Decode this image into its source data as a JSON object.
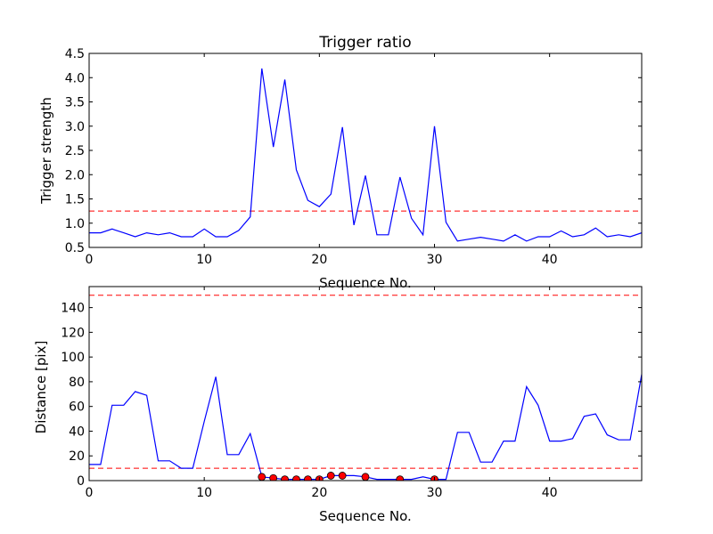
{
  "chart_data": [
    {
      "type": "line",
      "title": "Trigger ratio",
      "xlabel": "Sequence No.",
      "ylabel": "Trigger strength",
      "xlim": [
        0,
        48
      ],
      "ylim": [
        0.5,
        4.5
      ],
      "xticks": [
        0,
        10,
        20,
        30,
        40
      ],
      "yticks": [
        0.5,
        1.0,
        1.5,
        2.0,
        2.5,
        3.0,
        3.5,
        4.0,
        4.5
      ],
      "xtick_labels": [
        "0",
        "10",
        "20",
        "30",
        "40"
      ],
      "ytick_labels": [
        "0.5",
        "1.0",
        "1.5",
        "2.0",
        "2.5",
        "3.0",
        "3.5",
        "4.0",
        "4.5"
      ],
      "grid": false,
      "series": [
        {
          "color": "#0000ff",
          "x": [
            0,
            1,
            2,
            3,
            4,
            5,
            6,
            7,
            8,
            9,
            10,
            11,
            12,
            13,
            14,
            15,
            16,
            17,
            18,
            19,
            20,
            21,
            22,
            23,
            24,
            25,
            26,
            27,
            28,
            29,
            30,
            31,
            32,
            33,
            34,
            35,
            36,
            37,
            38,
            39,
            40,
            41,
            42,
            43,
            44,
            45,
            46,
            47,
            48
          ],
          "y": [
            0.8,
            0.8,
            0.88,
            0.8,
            0.72,
            0.8,
            0.76,
            0.8,
            0.72,
            0.72,
            0.88,
            0.72,
            0.72,
            0.85,
            1.13,
            4.19,
            2.57,
            3.96,
            2.1,
            1.47,
            1.34,
            1.6,
            2.98,
            0.96,
            1.98,
            0.76,
            0.76,
            1.95,
            1.1,
            0.76,
            3.0,
            1.02,
            0.63,
            0.67,
            0.71,
            0.67,
            0.63,
            0.76,
            0.63,
            0.72,
            0.72,
            0.84,
            0.72,
            0.76,
            0.9,
            0.72,
            0.76,
            0.72,
            0.8
          ]
        }
      ],
      "hlines": [
        {
          "y": 1.25,
          "color": "#ff0000",
          "style": "dashed"
        }
      ]
    },
    {
      "type": "line",
      "title": "",
      "xlabel": "Sequence No.",
      "ylabel": "Distance [pix]",
      "xlim": [
        0,
        48
      ],
      "ylim": [
        0,
        157
      ],
      "xticks": [
        0,
        10,
        20,
        30,
        40
      ],
      "yticks": [
        0,
        20,
        40,
        60,
        80,
        100,
        120,
        140
      ],
      "xtick_labels": [
        "0",
        "10",
        "20",
        "30",
        "40"
      ],
      "ytick_labels": [
        "0",
        "20",
        "40",
        "60",
        "80",
        "100",
        "120",
        "140"
      ],
      "grid": false,
      "series": [
        {
          "color": "#0000ff",
          "x": [
            0,
            1,
            2,
            3,
            4,
            5,
            6,
            7,
            8,
            9,
            10,
            11,
            12,
            13,
            14,
            15,
            16,
            17,
            18,
            19,
            20,
            21,
            22,
            23,
            24,
            25,
            26,
            27,
            28,
            29,
            30,
            31,
            32,
            33,
            34,
            35,
            36,
            37,
            38,
            39,
            40,
            41,
            42,
            43,
            44,
            45,
            46,
            47,
            48
          ],
          "y": [
            13,
            13,
            61,
            61,
            72,
            69,
            16,
            16,
            10,
            10,
            48,
            84,
            21,
            21,
            38,
            3,
            2,
            1,
            1,
            1,
            1,
            4,
            4,
            4,
            3,
            1,
            1,
            1,
            1,
            3,
            1,
            1,
            39,
            39,
            15,
            15,
            32,
            32,
            76,
            61,
            32,
            32,
            34,
            52,
            54,
            37,
            33,
            33,
            86
          ]
        },
        {
          "type": "scatter",
          "color": "#ff0000",
          "x": [
            15,
            16,
            17,
            18,
            19,
            20,
            21,
            22,
            24,
            27,
            30
          ],
          "y": [
            3,
            2,
            1,
            1,
            1,
            1,
            4,
            4,
            3,
            1,
            1
          ]
        }
      ],
      "hlines": [
        {
          "y": 150,
          "color": "#ff0000",
          "style": "dashed"
        },
        {
          "y": 10,
          "color": "#ff0000",
          "style": "dashed"
        }
      ]
    }
  ]
}
